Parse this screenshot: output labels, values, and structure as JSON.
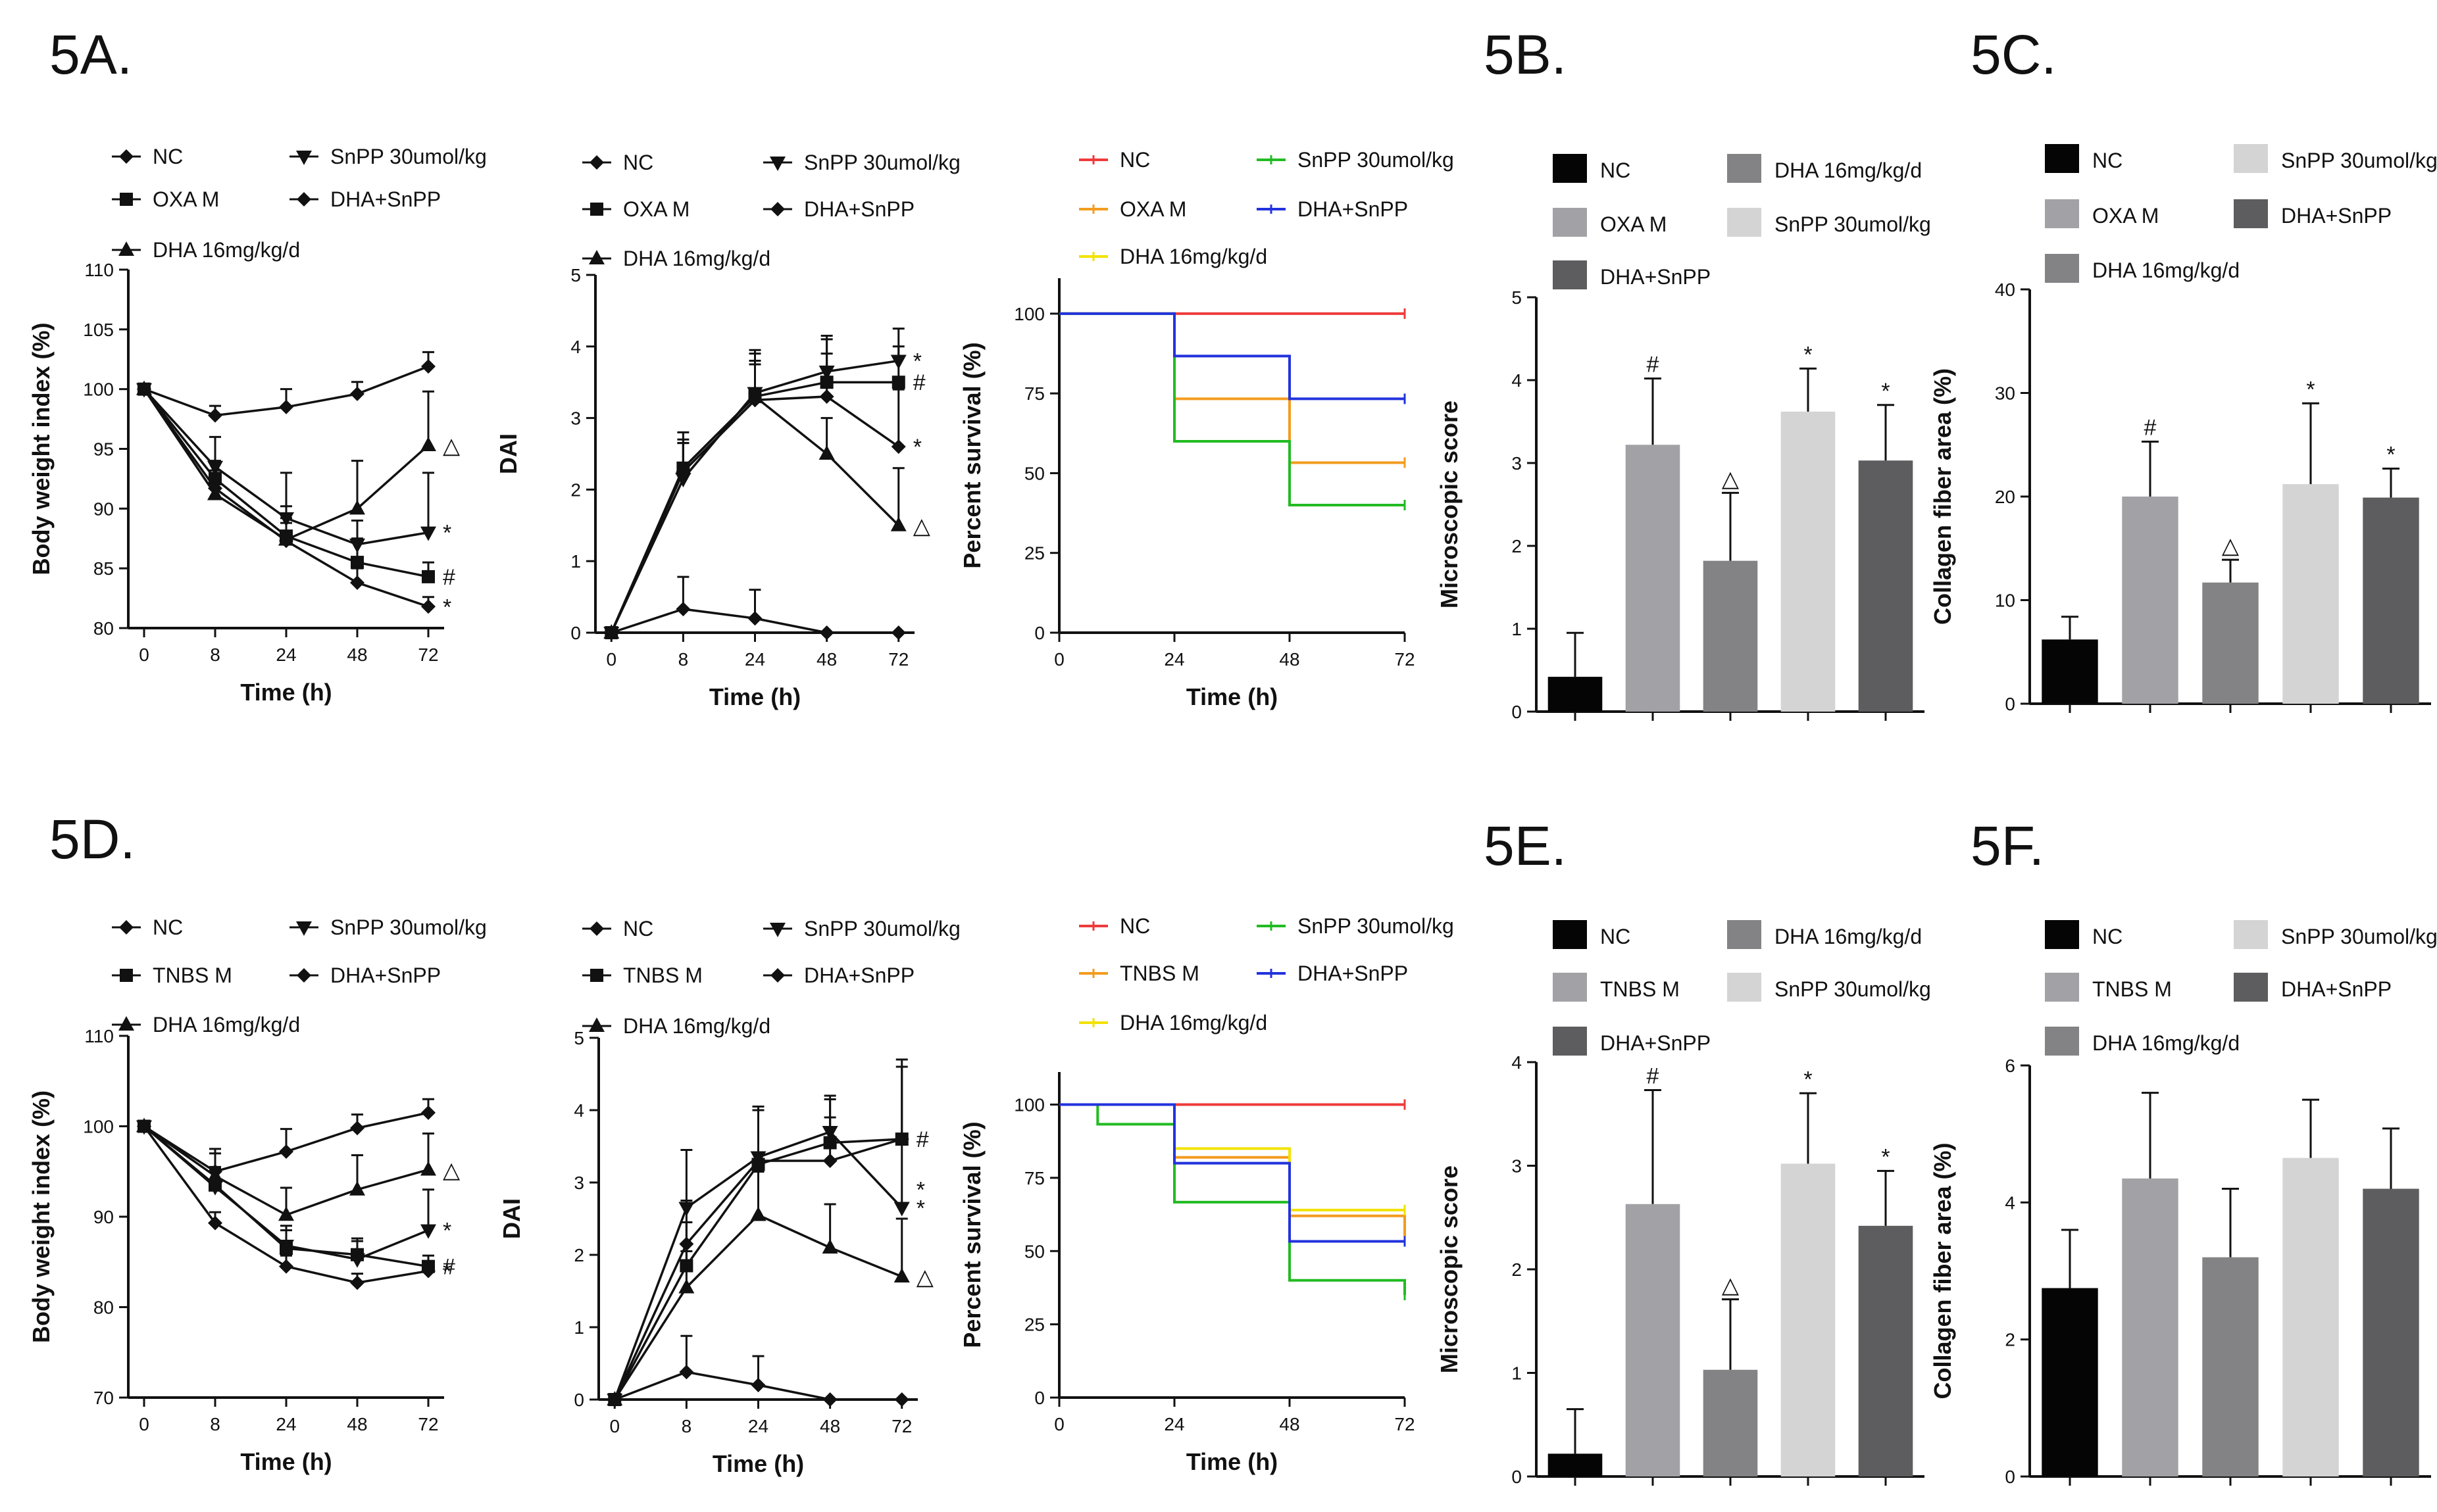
{
  "figure_labels": [
    "5A.",
    "5B.",
    "5C.",
    "5D.",
    "5E.",
    "5F."
  ],
  "chart_data": [
    {
      "id": "A1",
      "panel": "5A.",
      "type": "line",
      "ylabel": "Body weight index (%)",
      "xlabel": "Time (h)",
      "xcats": [
        "0",
        "8",
        "24",
        "48",
        "72"
      ],
      "ylim": [
        80,
        110
      ],
      "yticks": [
        80,
        85,
        90,
        95,
        100,
        105,
        110
      ],
      "legend": [
        "NC",
        "SnPP 30umol/kg",
        "OXA  M",
        "DHA+SnPP",
        "DHA 16mg/kg/d"
      ],
      "series": [
        {
          "name": "NC",
          "marker": "diamond",
          "values": [
            100,
            97.8,
            98.5,
            99.6,
            101.9
          ],
          "err": [
            0,
            0.8,
            1.5,
            1,
            1.2
          ]
        },
        {
          "name": "OXA  M",
          "marker": "square",
          "values": [
            100,
            92.5,
            87.7,
            85.5,
            84.3
          ],
          "err": [
            0,
            1.5,
            2.5,
            2,
            1.2
          ]
        },
        {
          "name": "DHA 16mg/kg/d",
          "marker": "triangle",
          "values": [
            100,
            91.2,
            87.4,
            90,
            95.3
          ],
          "err": [
            0,
            1.8,
            1.8,
            4,
            4.5
          ]
        },
        {
          "name": "SnPP 30umol/kg",
          "marker": "tridown",
          "values": [
            100,
            93.5,
            89.2,
            87,
            88
          ],
          "err": [
            0,
            2.5,
            3.8,
            2,
            5
          ]
        },
        {
          "name": "DHA+SnPP",
          "marker": "diamond",
          "values": [
            100,
            91.7,
            87.3,
            83.8,
            81.8
          ],
          "err": [
            0,
            1.5,
            1.5,
            1.2,
            0.8
          ]
        }
      ],
      "annotations": [
        {
          "text": "△",
          "series": 2,
          "xi": 4
        },
        {
          "text": "*",
          "series": 3,
          "xi": 4
        },
        {
          "text": "#",
          "series": 1,
          "xi": 4
        },
        {
          "text": "*",
          "series": 4,
          "xi": 4
        }
      ]
    },
    {
      "id": "A2",
      "type": "line",
      "ylabel": "DAI",
      "xlabel": "Time (h)",
      "xcats": [
        "0",
        "8",
        "24",
        "48",
        "72"
      ],
      "ylim": [
        0,
        5
      ],
      "yticks": [
        0,
        1,
        2,
        3,
        4,
        5
      ],
      "legend": [
        "NC",
        "SnPP 30umol/kg",
        "OXA M",
        "DHA+SnPP",
        "DHA 16mg/kg/d"
      ],
      "series": [
        {
          "name": "NC",
          "marker": "diamond",
          "values": [
            0,
            0.33,
            0.2,
            0,
            0
          ],
          "err": [
            0,
            0.45,
            0.4,
            0,
            0
          ]
        },
        {
          "name": "OXA M",
          "marker": "square",
          "values": [
            0,
            2.3,
            3.3,
            3.5,
            3.5
          ],
          "err": [
            0,
            0.5,
            0.6,
            0.6,
            0.5
          ]
        },
        {
          "name": "DHA 16mg/kg/d",
          "marker": "triangle",
          "values": [
            0,
            2.3,
            3.3,
            2.5,
            1.5
          ],
          "err": [
            0,
            0.4,
            0.5,
            0.5,
            0.8
          ]
        },
        {
          "name": "SnPP 30umol/kg",
          "marker": "tridown",
          "values": [
            0,
            2.15,
            3.35,
            3.65,
            3.8
          ],
          "err": [
            0,
            0.5,
            0.6,
            0.5,
            0.45
          ]
        },
        {
          "name": "DHA+SnPP",
          "marker": "diamond",
          "values": [
            0,
            2.25,
            3.25,
            3.3,
            2.6
          ],
          "err": [
            0,
            0.4,
            0.5,
            0.6,
            0.8
          ]
        }
      ],
      "annotations": [
        {
          "text": "*",
          "series": 3,
          "xi": 4
        },
        {
          "text": "#",
          "series": 1,
          "xi": 4
        },
        {
          "text": "*",
          "series": 4,
          "xi": 4
        },
        {
          "text": "△",
          "series": 2,
          "xi": 4
        }
      ]
    },
    {
      "id": "A3",
      "type": "survival",
      "ylabel": "Percent survival (%)",
      "xlabel": "Time (h)",
      "xlim": [
        0,
        72
      ],
      "xticks": [
        0,
        24,
        48,
        72
      ],
      "ylim": [
        0,
        100
      ],
      "yticks": [
        0,
        25,
        50,
        75,
        100
      ],
      "legend": [
        "NC",
        "SnPP 30umol/kg",
        "OXA M",
        "DHA+SnPP",
        "DHA 16mg/kg/d"
      ],
      "series": [
        {
          "name": "NC",
          "color": "#ee3b3b",
          "steps": [
            [
              0,
              100
            ],
            [
              72,
              100
            ]
          ]
        },
        {
          "name": "OXA M",
          "color": "#f39c1f",
          "steps": [
            [
              0,
              100
            ],
            [
              24,
              73.3
            ],
            [
              48,
              53.3
            ],
            [
              72,
              53.3
            ]
          ]
        },
        {
          "name": "DHA 16mg/kg/d",
          "color": "#f2e200",
          "steps": []
        },
        {
          "name": "SnPP 30umol/kg",
          "color": "#22bb22",
          "steps": [
            [
              0,
              100
            ],
            [
              24,
              60
            ],
            [
              48,
              40
            ],
            [
              72,
              40
            ]
          ]
        },
        {
          "name": "DHA+SnPP",
          "color": "#2233dd",
          "steps": [
            [
              0,
              100
            ],
            [
              24,
              86.7
            ],
            [
              48,
              73.3
            ],
            [
              72,
              73.3
            ]
          ]
        }
      ]
    },
    {
      "id": "B",
      "panel": "5B.",
      "type": "bar",
      "ylabel": "Microscopic score",
      "ylim": [
        0,
        5
      ],
      "yticks": [
        0,
        1,
        2,
        3,
        4,
        5
      ],
      "legend": [
        "NC",
        "DHA 16mg/kg/d",
        "OXA M",
        "SnPP 30umol/kg",
        "DHA+SnPP"
      ],
      "bars": [
        {
          "name": "NC",
          "value": 0.42,
          "err": 0.53,
          "color": "#050505",
          "ann": ""
        },
        {
          "name": "OXA M",
          "value": 3.22,
          "err": 0.8,
          "color": "#a2a2a6",
          "ann": "#"
        },
        {
          "name": "DHA 16mg/kg/d",
          "value": 1.82,
          "err": 0.82,
          "color": "#838385",
          "ann": "△"
        },
        {
          "name": "SnPP 30umol/kg",
          "value": 3.62,
          "err": 0.52,
          "color": "#d4d4d4",
          "ann": "*"
        },
        {
          "name": "DHA+SnPP",
          "value": 3.03,
          "err": 0.67,
          "color": "#5d5d5f",
          "ann": "*"
        }
      ]
    },
    {
      "id": "C",
      "panel": "5C.",
      "type": "bar",
      "ylabel": "Collagen fiber area (%)",
      "ylim": [
        0,
        40
      ],
      "yticks": [
        0,
        10,
        20,
        30,
        40
      ],
      "legend": [
        "NC",
        "SnPP 30umol/kg",
        "OXA M",
        "DHA+SnPP",
        "DHA 16mg/kg/d"
      ],
      "bars": [
        {
          "name": "NC",
          "value": 6.2,
          "err": 2.2,
          "color": "#050505",
          "ann": ""
        },
        {
          "name": "OXA M",
          "value": 20,
          "err": 5.3,
          "color": "#a2a2a6",
          "ann": "#"
        },
        {
          "name": "DHA 16mg/kg/d",
          "value": 11.7,
          "err": 2.2,
          "color": "#838385",
          "ann": "△"
        },
        {
          "name": "SnPP 30umol/kg",
          "value": 21.2,
          "err": 7.8,
          "color": "#d4d4d4",
          "ann": "*"
        },
        {
          "name": "DHA+SnPP",
          "value": 19.9,
          "err": 2.8,
          "color": "#5d5d5f",
          "ann": "*"
        }
      ]
    },
    {
      "id": "D1",
      "panel": "5D.",
      "type": "line",
      "ylabel": "Body weight index (%)",
      "xlabel": "Time (h)",
      "xcats": [
        "0",
        "8",
        "24",
        "48",
        "72"
      ],
      "ylim": [
        70,
        110
      ],
      "yticks": [
        70,
        80,
        90,
        100,
        110
      ],
      "legend": [
        "NC",
        "SnPP 30umol/kg",
        "TNBS M",
        "DHA+SnPP",
        "DHA 16mg/kg/d"
      ],
      "series": [
        {
          "name": "NC",
          "marker": "diamond",
          "values": [
            100,
            95,
            97.2,
            99.8,
            101.5
          ],
          "err": [
            0,
            2.5,
            2.5,
            1.5,
            1.5
          ]
        },
        {
          "name": "TNBS M",
          "marker": "square",
          "values": [
            100,
            93.5,
            86.5,
            85.8,
            84.5
          ],
          "err": [
            0,
            2,
            2,
            1.8,
            1.2
          ]
        },
        {
          "name": "DHA 16mg/kg/d",
          "marker": "triangle",
          "values": [
            100,
            94.5,
            90.2,
            93,
            95.2
          ],
          "err": [
            0,
            2.5,
            3,
            3.8,
            4
          ]
        },
        {
          "name": "SnPP 30umol/kg",
          "marker": "tridown",
          "values": [
            100,
            93.3,
            86.8,
            85.3,
            88.5
          ],
          "err": [
            0,
            2,
            2.2,
            2,
            4.5
          ]
        },
        {
          "name": "DHA+SnPP",
          "marker": "diamond",
          "values": [
            100,
            89.3,
            84.5,
            82.7,
            84
          ],
          "err": [
            0,
            1.2,
            1.2,
            1,
            1
          ]
        }
      ],
      "annotations": [
        {
          "text": "△",
          "series": 2,
          "xi": 4
        },
        {
          "text": "*",
          "series": 3,
          "xi": 4
        },
        {
          "text": "#",
          "series": 1,
          "xi": 4
        },
        {
          "text": "*",
          "series": 4,
          "xi": 4
        }
      ]
    },
    {
      "id": "D2",
      "type": "line",
      "ylabel": "DAI",
      "xlabel": "Time (h)",
      "xcats": [
        "0",
        "8",
        "24",
        "48",
        "72"
      ],
      "ylim": [
        0,
        5
      ],
      "yticks": [
        0,
        1,
        2,
        3,
        4,
        5
      ],
      "legend": [
        "NC",
        "SnPP 30umol/kg",
        "TNBS M",
        "DHA+SnPP",
        "DHA 16mg/kg/d"
      ],
      "series": [
        {
          "name": "NC",
          "marker": "diamond",
          "values": [
            0,
            0.38,
            0.2,
            0,
            0
          ],
          "err": [
            0,
            0.5,
            0.4,
            0,
            0
          ]
        },
        {
          "name": "TNBS M",
          "marker": "square",
          "values": [
            0,
            1.85,
            3.25,
            3.55,
            3.6
          ],
          "err": [
            0,
            0.6,
            0.8,
            0.6,
            1.1
          ]
        },
        {
          "name": "DHA 16mg/kg/d",
          "marker": "triangle",
          "values": [
            0,
            1.55,
            2.55,
            2.1,
            1.7
          ],
          "err": [
            0,
            0.5,
            0.6,
            0.6,
            0.8
          ]
        },
        {
          "name": "SnPP 30umol/kg",
          "marker": "tridown",
          "values": [
            0,
            2.65,
            3.35,
            3.7,
            2.65
          ],
          "err": [
            0,
            0.8,
            0.7,
            0.5,
            1
          ]
        },
        {
          "name": "DHA+SnPP",
          "marker": "diamond",
          "values": [
            0,
            2.15,
            3.3,
            3.3,
            3.6
          ],
          "err": [
            0,
            0.6,
            0.7,
            0.6,
            1
          ]
        }
      ],
      "annotations": [
        {
          "text": "*",
          "series": 3,
          "xi": 4,
          "dy": -1
        },
        {
          "text": "#",
          "series": 1,
          "xi": 4
        },
        {
          "text": "*",
          "series": 3,
          "xi": 4
        },
        {
          "text": "△",
          "series": 2,
          "xi": 4
        }
      ]
    },
    {
      "id": "D3",
      "type": "survival",
      "ylabel": "Percent survival (%)",
      "xlabel": "Time (h)",
      "xlim": [
        0,
        72
      ],
      "xticks": [
        0,
        24,
        48,
        72
      ],
      "ylim": [
        0,
        100
      ],
      "yticks": [
        0,
        25,
        50,
        75,
        100
      ],
      "legend": [
        "NC",
        "SnPP 30umol/kg",
        "TNBS M",
        "DHA+SnPP",
        "DHA 16mg/kg/d"
      ],
      "series": [
        {
          "name": "NC",
          "color": "#ee3b3b",
          "steps": [
            [
              0,
              100
            ],
            [
              72,
              100
            ]
          ]
        },
        {
          "name": "TNBS M",
          "color": "#f39c1f",
          "steps": [
            [
              0,
              100
            ],
            [
              24,
              82
            ],
            [
              48,
              62
            ],
            [
              72,
              55
            ]
          ]
        },
        {
          "name": "DHA 16mg/kg/d",
          "color": "#f2e200",
          "steps": [
            [
              0,
              100
            ],
            [
              24,
              85
            ],
            [
              48,
              64
            ],
            [
              72,
              64
            ]
          ]
        },
        {
          "name": "SnPP 30umol/kg",
          "color": "#22bb22",
          "steps": [
            [
              0,
              100
            ],
            [
              8,
              93.3
            ],
            [
              24,
              66.7
            ],
            [
              48,
              40
            ],
            [
              72,
              35
            ]
          ]
        },
        {
          "name": "DHA+SnPP",
          "color": "#2233dd",
          "steps": [
            [
              0,
              100
            ],
            [
              24,
              80
            ],
            [
              48,
              53.3
            ],
            [
              72,
              53.3
            ]
          ]
        }
      ]
    },
    {
      "id": "E",
      "panel": "5E.",
      "type": "bar",
      "ylabel": "Microscopic score",
      "ylim": [
        0,
        4
      ],
      "yticks": [
        0,
        1,
        2,
        3,
        4
      ],
      "legend": [
        "NC",
        "DHA 16mg/kg/d",
        "TNBS M",
        "SnPP 30umol/kg",
        "DHA+SnPP"
      ],
      "bars": [
        {
          "name": "NC",
          "value": 0.22,
          "err": 0.43,
          "color": "#050505",
          "ann": ""
        },
        {
          "name": "TNBS M",
          "value": 2.63,
          "err": 1.1,
          "color": "#a2a2a6",
          "ann": "#"
        },
        {
          "name": "DHA 16mg/kg/d",
          "value": 1.03,
          "err": 0.68,
          "color": "#838385",
          "ann": "△"
        },
        {
          "name": "SnPP 30umol/kg",
          "value": 3.02,
          "err": 0.68,
          "color": "#d4d4d4",
          "ann": "*"
        },
        {
          "name": "DHA+SnPP",
          "value": 2.42,
          "err": 0.53,
          "color": "#5d5d5f",
          "ann": "*"
        }
      ]
    },
    {
      "id": "F",
      "panel": "5F.",
      "type": "bar",
      "ylabel": "Collagen fiber area (%)",
      "ylim": [
        0,
        6
      ],
      "yticks": [
        0,
        2,
        4,
        6
      ],
      "legend": [
        "NC",
        "SnPP 30umol/kg",
        "TNBS M",
        "DHA+SnPP",
        "DHA 16mg/kg/d"
      ],
      "bars": [
        {
          "name": "NC",
          "value": 2.75,
          "err": 0.85,
          "color": "#050505",
          "ann": ""
        },
        {
          "name": "TNBS M",
          "value": 4.35,
          "err": 1.25,
          "color": "#a2a2a6",
          "ann": ""
        },
        {
          "name": "DHA 16mg/kg/d",
          "value": 3.2,
          "err": 1.0,
          "color": "#838385",
          "ann": ""
        },
        {
          "name": "SnPP 30umol/kg",
          "value": 4.65,
          "err": 0.85,
          "color": "#d4d4d4",
          "ann": ""
        },
        {
          "name": "DHA+SnPP",
          "value": 4.2,
          "err": 0.88,
          "color": "#5d5d5f",
          "ann": ""
        }
      ]
    }
  ]
}
